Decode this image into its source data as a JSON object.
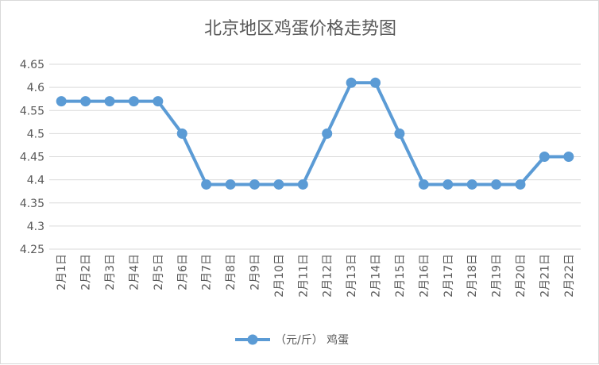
{
  "chart_data": {
    "type": "line",
    "title": "北京地区鸡蛋价格走势图",
    "categories": [
      "2月1日",
      "2月2日",
      "2月3日",
      "2月4日",
      "2月5日",
      "2月6日",
      "2月7日",
      "2月8日",
      "2月9日",
      "2月10日",
      "2月11日",
      "2月12日",
      "2月13日",
      "2月14日",
      "2月15日",
      "2月16日",
      "2月17日",
      "2月18日",
      "2月19日",
      "2月20日",
      "2月21日",
      "2月22日"
    ],
    "series": [
      {
        "name": "（元/斤） 鸡蛋",
        "color": "#5b9bd5",
        "values": [
          4.57,
          4.57,
          4.57,
          4.57,
          4.57,
          4.5,
          4.39,
          4.39,
          4.39,
          4.39,
          4.39,
          4.5,
          4.61,
          4.61,
          4.5,
          4.39,
          4.39,
          4.39,
          4.39,
          4.39,
          4.45,
          4.45
        ]
      }
    ],
    "ylim": [
      4.25,
      4.65
    ],
    "y_ticks": [
      "4.25",
      "4.3",
      "4.35",
      "4.4",
      "4.45",
      "4.5",
      "4.55",
      "4.6",
      "4.65"
    ],
    "xlabel": "",
    "ylabel": "",
    "grid": true,
    "legend": "bottom"
  }
}
